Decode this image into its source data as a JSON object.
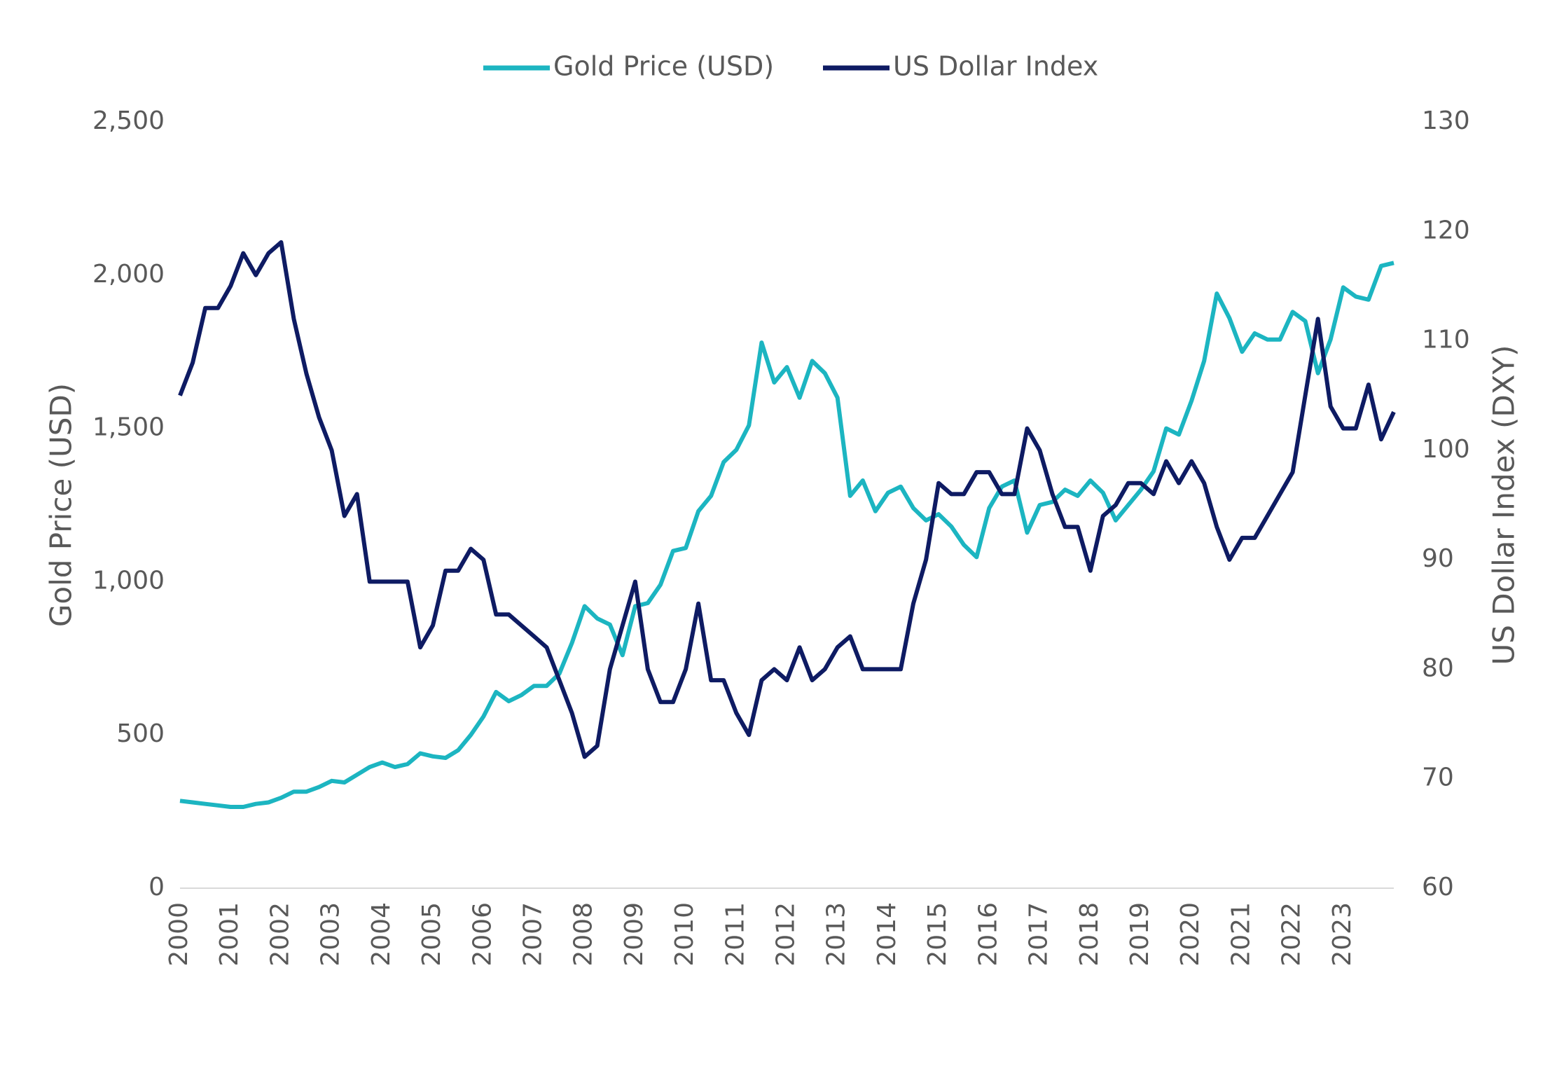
{
  "chart_data": {
    "type": "line",
    "x": [
      2000,
      2000.25,
      2000.5,
      2000.75,
      2001,
      2001.25,
      2001.5,
      2001.75,
      2002,
      2002.25,
      2002.5,
      2002.75,
      2003,
      2003.25,
      2003.5,
      2003.75,
      2004,
      2004.25,
      2004.5,
      2004.75,
      2005,
      2005.25,
      2005.5,
      2005.75,
      2006,
      2006.25,
      2006.5,
      2006.75,
      2007,
      2007.25,
      2007.5,
      2007.75,
      2008,
      2008.25,
      2008.5,
      2008.75,
      2009,
      2009.25,
      2009.5,
      2009.75,
      2010,
      2010.25,
      2010.5,
      2010.75,
      2011,
      2011.25,
      2011.5,
      2011.75,
      2012,
      2012.25,
      2012.5,
      2012.75,
      2013,
      2013.25,
      2013.5,
      2013.75,
      2014,
      2014.25,
      2014.5,
      2014.75,
      2015,
      2015.25,
      2015.5,
      2015.75,
      2016,
      2016.25,
      2016.5,
      2016.75,
      2017,
      2017.25,
      2017.5,
      2017.75,
      2018,
      2018.25,
      2018.5,
      2018.75,
      2019,
      2019.25,
      2019.5,
      2019.75,
      2020,
      2020.25,
      2020.5,
      2020.75,
      2021,
      2021.25,
      2021.5,
      2021.75,
      2022,
      2022.25,
      2022.5,
      2022.75,
      2023,
      2023.25,
      2023.5,
      2023.75,
      2024
    ],
    "series": [
      {
        "name": "Gold Price (USD)",
        "color": "#1cb5c1",
        "axis": "y",
        "values": [
          285,
          280,
          275,
          270,
          265,
          265,
          275,
          280,
          295,
          315,
          315,
          330,
          350,
          345,
          370,
          395,
          410,
          395,
          405,
          440,
          430,
          425,
          450,
          500,
          560,
          640,
          610,
          630,
          660,
          660,
          700,
          800,
          920,
          880,
          860,
          760,
          920,
          930,
          990,
          1100,
          1110,
          1230,
          1280,
          1390,
          1430,
          1510,
          1780,
          1650,
          1700,
          1600,
          1720,
          1680,
          1600,
          1280,
          1330,
          1230,
          1290,
          1310,
          1240,
          1200,
          1220,
          1180,
          1120,
          1080,
          1240,
          1310,
          1330,
          1160,
          1250,
          1260,
          1300,
          1280,
          1330,
          1290,
          1200,
          1250,
          1300,
          1360,
          1500,
          1480,
          1590,
          1720,
          1940,
          1860,
          1750,
          1810,
          1790,
          1790,
          1880,
          1850,
          1680,
          1790,
          1960,
          1930,
          1920,
          2030,
          2040
        ]
      },
      {
        "name": "US Dollar Index",
        "color": "#0e1b63",
        "axis": "y2",
        "values": [
          105,
          108,
          113,
          113,
          115,
          118,
          116,
          118,
          119,
          112,
          107,
          103,
          100,
          94,
          96,
          88,
          88,
          88,
          88,
          82,
          84,
          89,
          89,
          91,
          90,
          85,
          85,
          84,
          83,
          82,
          79,
          76,
          72,
          73,
          80,
          84,
          88,
          80,
          77,
          77,
          80,
          86,
          79,
          79,
          76,
          74,
          79,
          80,
          79,
          82,
          79,
          80,
          82,
          83,
          80,
          80,
          80,
          80,
          86,
          90,
          97,
          96,
          96,
          98,
          98,
          96,
          96,
          102,
          100,
          96,
          93,
          93,
          89,
          94,
          95,
          97,
          97,
          96,
          99,
          97,
          99,
          97,
          93,
          90,
          92,
          92,
          94,
          96,
          98,
          105,
          112,
          104,
          102,
          102,
          106,
          101,
          103.5
        ]
      }
    ],
    "xlim": [
      2000,
      2024
    ],
    "xticks": [
      2000,
      2001,
      2002,
      2003,
      2004,
      2005,
      2006,
      2007,
      2008,
      2009,
      2010,
      2011,
      2012,
      2013,
      2014,
      2015,
      2016,
      2017,
      2018,
      2019,
      2020,
      2021,
      2022,
      2023
    ],
    "ylim": [
      0,
      2500
    ],
    "yticks": [
      0,
      500,
      {
        "value": 1000,
        "label": "1,000"
      },
      {
        "value": 1500,
        "label": "1,500"
      },
      {
        "value": 2000,
        "label": "2,000"
      },
      {
        "value": 2500,
        "label": "2,500"
      }
    ],
    "y2lim": [
      60,
      130
    ],
    "y2ticks": [
      60,
      70,
      80,
      90,
      100,
      110,
      120,
      130
    ],
    "y_label": "Gold Price (USD)",
    "y2_label": "US Dollar Index (DXY)",
    "legend": "top"
  }
}
